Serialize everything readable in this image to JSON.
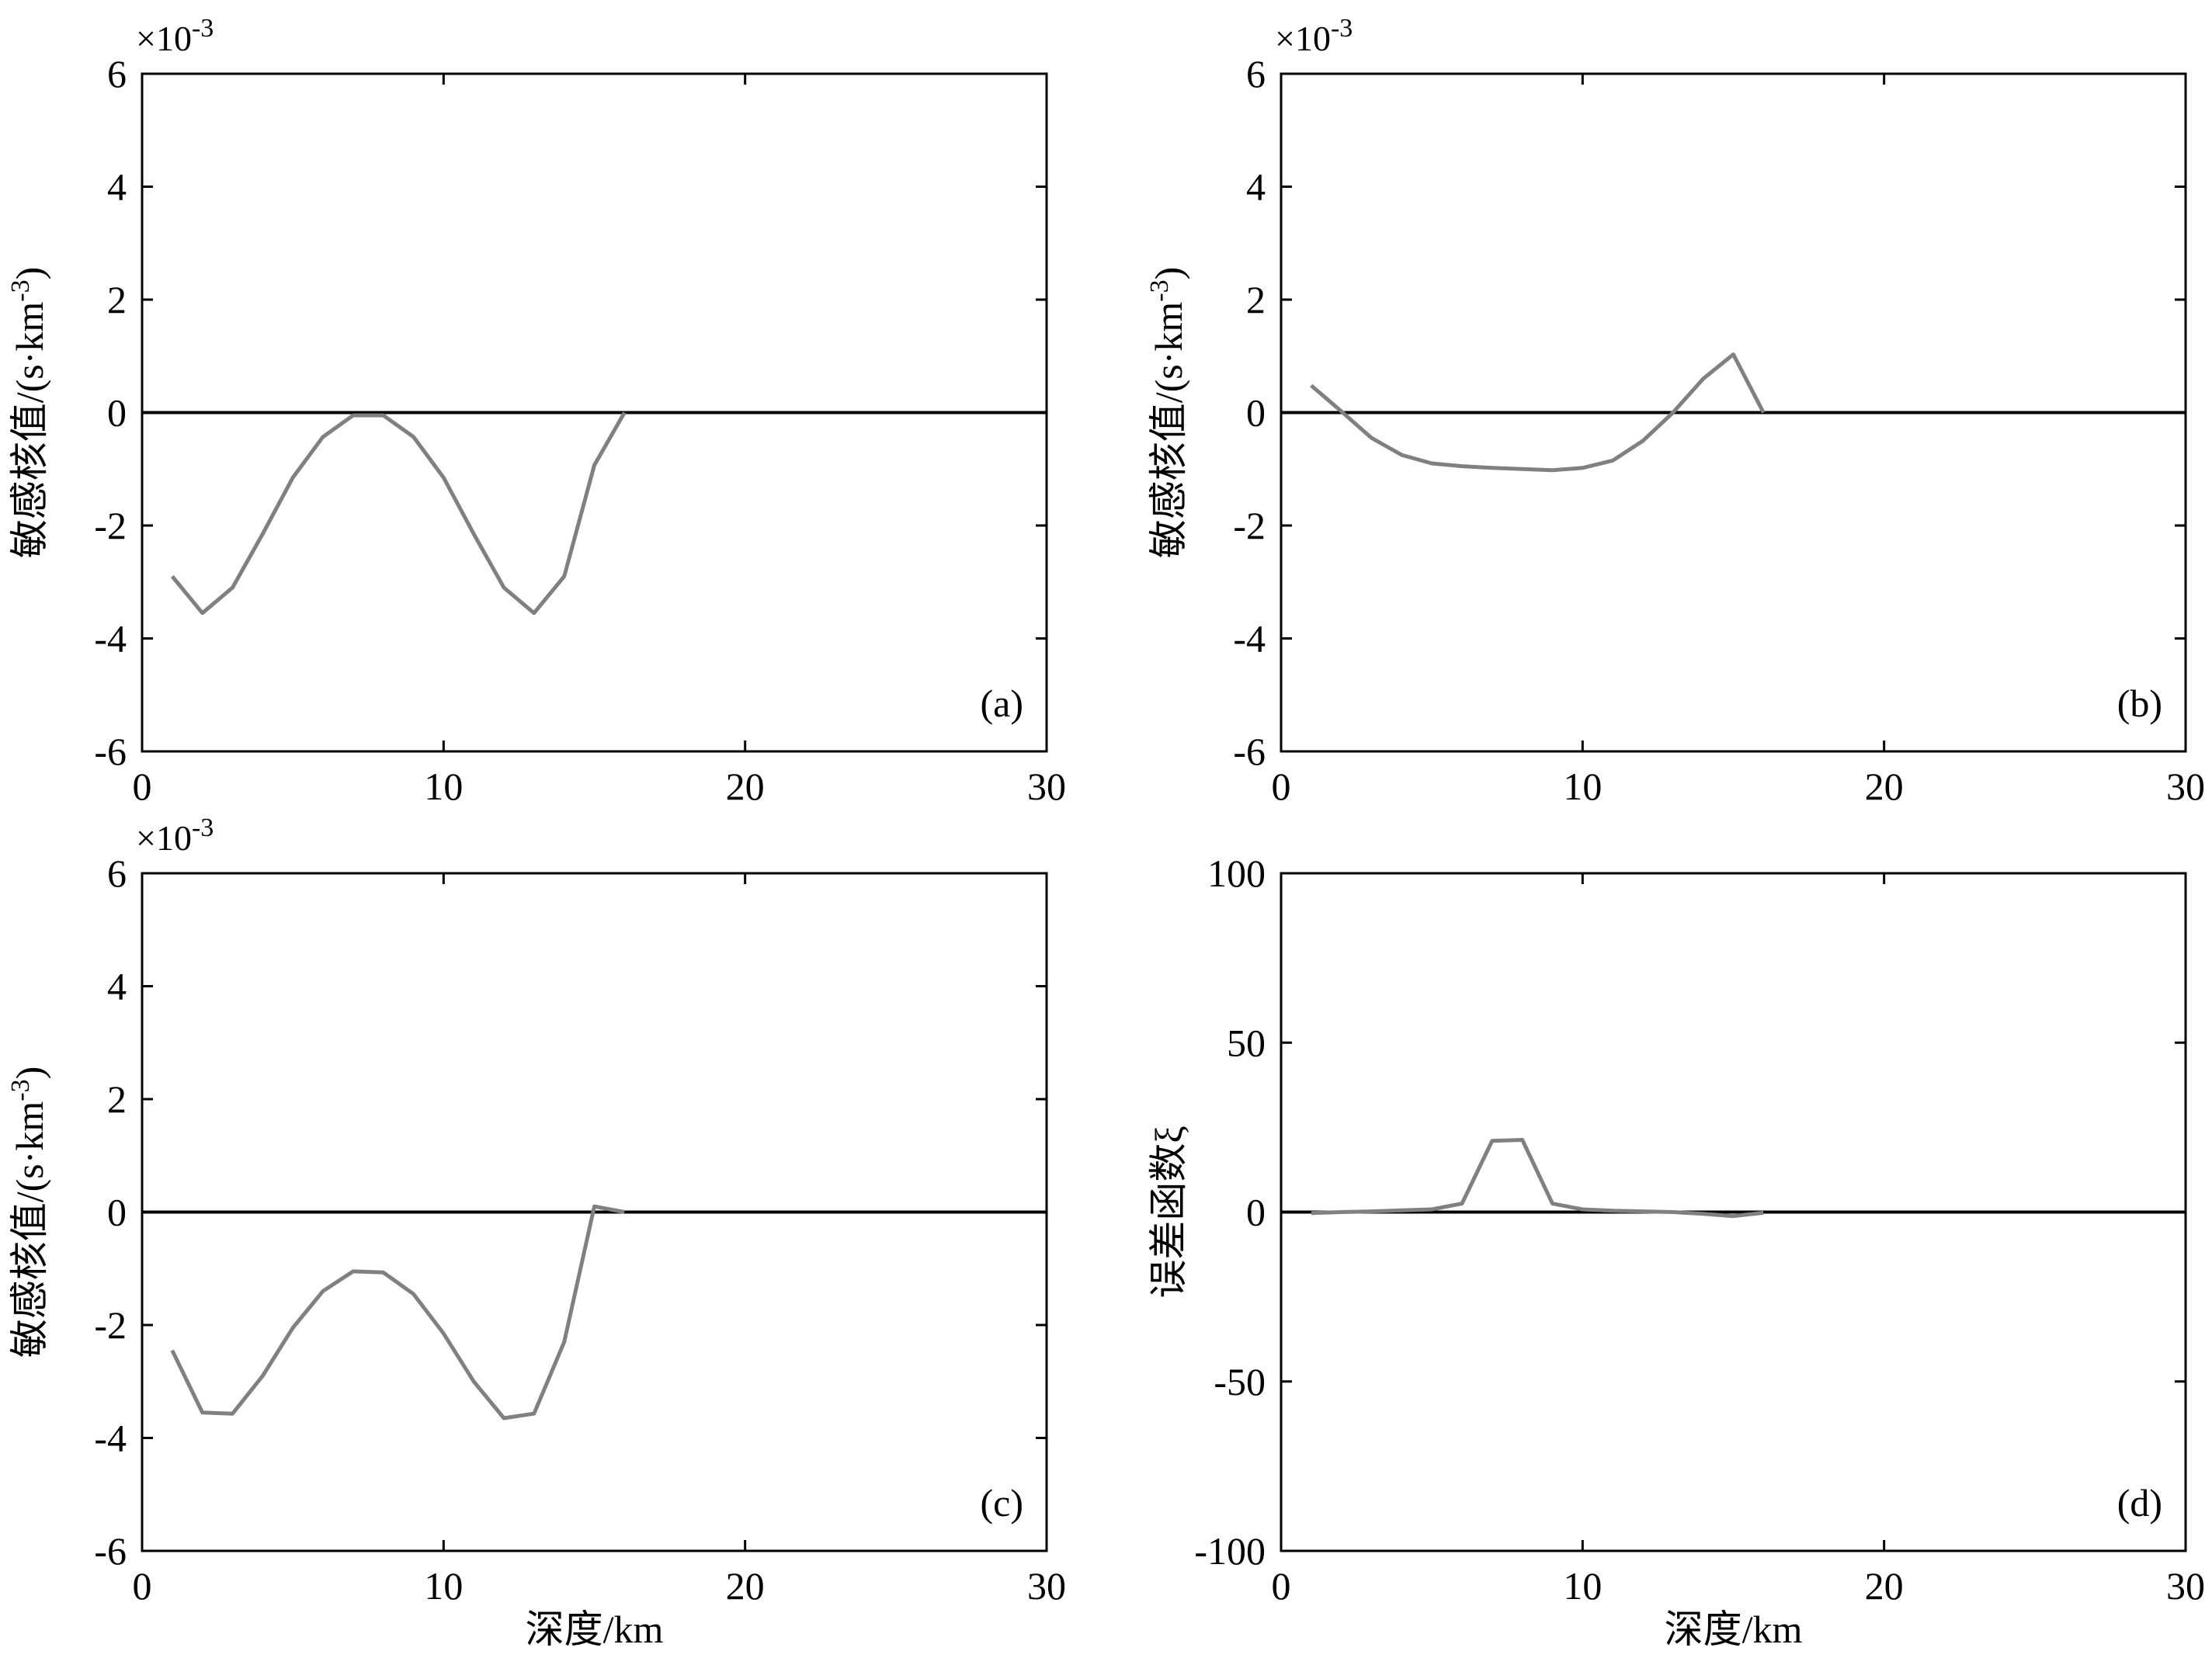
{
  "chart_data": [
    {
      "panel": "a",
      "type": "line",
      "panel_label": "(a)",
      "xlabel": "",
      "ylabel": "敏感核值/(s·km-3)",
      "y_multiplier": "×10-3",
      "xlim": [
        0,
        30
      ],
      "ylim": [
        -6,
        6
      ],
      "xticks": [
        "0",
        "10",
        "20",
        "30"
      ],
      "yticks": [
        "6",
        "4",
        "2",
        "0",
        "-2",
        "-4",
        "-6"
      ],
      "zero_line": true,
      "series": [
        {
          "color": "#808080",
          "x": [
            1,
            2,
            3,
            4,
            5,
            6,
            7,
            8,
            9,
            10,
            11,
            12,
            13,
            14,
            15,
            16
          ],
          "y": [
            -2.9,
            -3.55,
            -3.1,
            -2.15,
            -1.15,
            -0.43,
            -0.05,
            -0.05,
            -0.43,
            -1.15,
            -2.15,
            -3.1,
            -3.55,
            -2.9,
            -0.93,
            0.0
          ]
        }
      ]
    },
    {
      "panel": "b",
      "type": "line",
      "panel_label": "(b)",
      "xlabel": "",
      "ylabel": "敏感核值/(s·km-3)",
      "y_multiplier": "×10-3",
      "xlim": [
        0,
        30
      ],
      "ylim": [
        -6,
        6
      ],
      "xticks": [
        "0",
        "10",
        "20",
        "30"
      ],
      "yticks": [
        "6",
        "4",
        "2",
        "0",
        "-2",
        "-4",
        "-6"
      ],
      "zero_line": true,
      "series": [
        {
          "color": "#808080",
          "x": [
            1,
            2,
            3,
            4,
            5,
            6,
            7,
            8,
            9,
            10,
            11,
            12,
            13,
            14,
            15,
            16
          ],
          "y": [
            0.48,
            0.02,
            -0.45,
            -0.75,
            -0.9,
            -0.95,
            -0.98,
            -1.0,
            -1.02,
            -0.98,
            -0.85,
            -0.5,
            0.0,
            0.6,
            1.03,
            0.0
          ]
        }
      ]
    },
    {
      "panel": "c",
      "type": "line",
      "panel_label": "(c)",
      "xlabel": "深度/km",
      "ylabel": "敏感核值/(s·km-3)",
      "y_multiplier": "×10-3",
      "xlim": [
        0,
        30
      ],
      "ylim": [
        -6,
        6
      ],
      "xticks": [
        "0",
        "10",
        "20",
        "30"
      ],
      "yticks": [
        "6",
        "4",
        "2",
        "0",
        "-2",
        "-4",
        "-6"
      ],
      "zero_line": true,
      "series": [
        {
          "color": "#808080",
          "x": [
            1,
            2,
            3,
            4,
            5,
            6,
            7,
            8,
            9,
            10,
            11,
            12,
            13,
            14,
            15,
            16
          ],
          "y": [
            -2.45,
            -3.55,
            -3.57,
            -2.9,
            -2.05,
            -1.4,
            -1.05,
            -1.07,
            -1.45,
            -2.15,
            -3.0,
            -3.65,
            -3.57,
            -2.3,
            0.1,
            0.0
          ]
        }
      ]
    },
    {
      "panel": "d",
      "type": "line",
      "panel_label": "(d)",
      "xlabel": "深度/km",
      "ylabel": "误差函数ξ",
      "y_multiplier": "",
      "xlim": [
        0,
        30
      ],
      "ylim": [
        -100,
        100
      ],
      "xticks": [
        "0",
        "10",
        "20",
        "30"
      ],
      "yticks": [
        "100",
        "50",
        "0",
        "-50",
        "-100"
      ],
      "zero_line": true,
      "series": [
        {
          "color": "#808080",
          "x": [
            1,
            2,
            3,
            4,
            5,
            6,
            7,
            8,
            9,
            10,
            11,
            12,
            13,
            14,
            15,
            16
          ],
          "y": [
            -0.3,
            0.0,
            0.2,
            0.5,
            0.8,
            2.5,
            21.0,
            21.3,
            2.5,
            0.8,
            0.4,
            0.2,
            0.0,
            -0.5,
            -1.2,
            -0.2
          ]
        }
      ]
    }
  ]
}
